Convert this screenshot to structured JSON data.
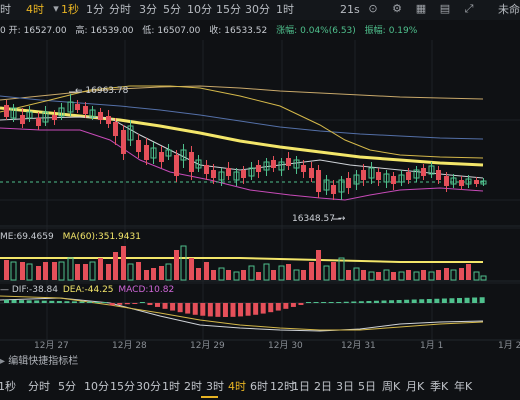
{
  "toolbar": {
    "time_label": "时",
    "interval_label": "4时",
    "period_1s": "1秒",
    "period_1m": "1分",
    "period_time": "分时",
    "period_3m": "3分",
    "period_5m": "5分",
    "period_10m": "10分",
    "period_15m": "15分",
    "period_30m": "30分",
    "period_1h": "1时",
    "countdown": "21s",
    "right_label": "未命"
  },
  "ohlc": {
    "open_label": "开:",
    "open": "16527.00",
    "high_label": "高:",
    "high": "16539.00",
    "low_label": "低:",
    "low": "16507.00",
    "close_label": "收:",
    "close": "16533.52",
    "change_label": "涨幅:",
    "change": "0.04%(6.53)",
    "amp_label": "振幅:",
    "amp": "0.19%"
  },
  "annotations": {
    "high_mark": "16963.78",
    "low_mark": "16348.57"
  },
  "volume": {
    "label": "ME:69.4659",
    "ma60": "MA(60):351.9431"
  },
  "macd": {
    "dif": "DIF:-38.84",
    "dea": "DEA:-44.25",
    "macd": "MACD:10.82"
  },
  "x_axis": {
    "ticks": [
      "12月 27",
      "12月 28",
      "12月 29",
      "12月 30",
      "12月 31",
      "1月 1",
      "1月 2"
    ]
  },
  "bottom": {
    "label": "编辑快捷指标栏"
  },
  "periods": [
    "1秒",
    "分时",
    "5分",
    "10分",
    "15分",
    "30分",
    "1时",
    "2时",
    "3时",
    "4时",
    "6时",
    "12时",
    "1日",
    "2日",
    "3日",
    "5日",
    "周K",
    "月K",
    "季K",
    "年K"
  ],
  "active_period": "4时",
  "colors": {
    "up": "#4fc08d",
    "down": "#e5505a",
    "accent": "#e8b423"
  }
}
